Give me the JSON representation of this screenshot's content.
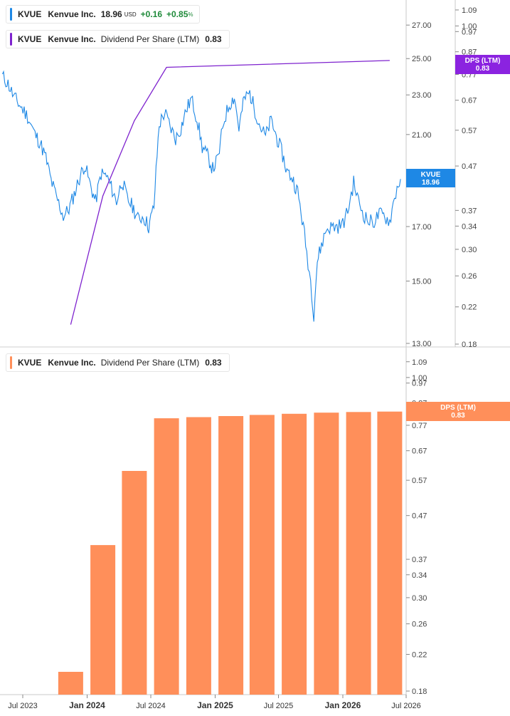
{
  "colors": {
    "price": "#1e88e5",
    "dps_line": "#7e22ce",
    "dps_bar": "#ff8f5a",
    "axis": "#888888"
  },
  "legend_price": {
    "symbol": "KVUE",
    "name": "Kenvue Inc.",
    "price": "18.96",
    "currency": "USD",
    "change": "+0.16",
    "change_pct_value": "+0.85",
    "change_pct_unit": "%"
  },
  "legend_dps_top": {
    "symbol": "KVUE",
    "name": "Kenvue Inc.",
    "metric": "Dividend Per Share (LTM)",
    "value": "0.83"
  },
  "legend_dps_bottom": {
    "symbol": "KVUE",
    "name": "Kenvue Inc.",
    "metric": "Dividend Per Share (LTM)",
    "value": "0.83"
  },
  "badges": {
    "price": {
      "label": "KVUE",
      "value": "18.96"
    },
    "dps_top": {
      "label": "DPS (LTM)",
      "value": "0.83"
    },
    "dps_bottom": {
      "label": "DPS (LTM)",
      "value": "0.83"
    }
  },
  "chart_data": [
    {
      "type": "line",
      "name": "KVUE Kenvue Inc.",
      "x_range": [
        "2023-05",
        "2026-07"
      ],
      "ylim": [
        13.0,
        28.6
      ],
      "y_scale": "log",
      "y_ticks": [
        "27.00",
        "25.00",
        "23.00",
        "21.00",
        "17.00",
        "15.00",
        "13.00"
      ],
      "x": [
        "2023-05-04",
        "2023-05-20",
        "2023-06-05",
        "2023-06-25",
        "2023-07-15",
        "2023-08-05",
        "2023-08-20",
        "2023-09-05",
        "2023-09-20",
        "2023-10-05",
        "2023-10-25",
        "2023-11-10",
        "2023-11-25",
        "2023-12-10",
        "2023-12-25",
        "2024-01-10",
        "2024-01-25",
        "2024-02-10",
        "2024-02-25",
        "2024-03-10",
        "2024-03-25",
        "2024-04-10",
        "2024-04-25",
        "2024-05-10",
        "2024-05-25",
        "2024-06-10",
        "2024-06-25",
        "2024-07-10",
        "2024-07-25",
        "2024-08-10",
        "2024-08-25",
        "2024-09-10",
        "2024-09-25",
        "2024-10-10",
        "2024-10-25",
        "2024-11-10",
        "2024-11-25",
        "2024-12-10",
        "2024-12-25",
        "2025-01-10",
        "2025-01-25",
        "2025-02-10",
        "2025-02-25",
        "2025-03-10",
        "2025-03-25",
        "2025-04-10",
        "2025-04-25",
        "2025-05-10",
        "2025-05-25",
        "2025-06-10",
        "2025-06-25",
        "2025-07-10",
        "2025-07-25",
        "2025-08-10",
        "2025-08-25",
        "2025-09-10",
        "2025-09-20",
        "2025-10-01",
        "2025-10-10",
        "2025-10-20",
        "2025-11-01",
        "2025-11-15",
        "2025-12-01",
        "2025-12-15",
        "2026-01-01",
        "2026-01-15",
        "2026-02-01",
        "2026-02-15",
        "2026-03-01",
        "2026-03-15",
        "2026-04-01",
        "2026-04-15",
        "2026-05-01",
        "2026-05-15",
        "2026-05-25",
        "2026-06-05",
        "2026-06-15"
      ],
      "y": [
        24.0,
        23.6,
        22.9,
        22.4,
        21.9,
        21.0,
        20.6,
        19.9,
        18.9,
        18.2,
        17.4,
        17.7,
        18.3,
        19.0,
        19.6,
        18.7,
        18.0,
        19.2,
        19.1,
        18.6,
        18.0,
        18.9,
        18.1,
        17.8,
        17.3,
        17.4,
        17.0,
        17.8,
        21.5,
        22.1,
        21.4,
        20.8,
        21.3,
        22.2,
        22.8,
        21.8,
        20.4,
        20.0,
        19.4,
        19.9,
        21.6,
        22.5,
        22.9,
        21.3,
        22.8,
        23.1,
        22.2,
        21.4,
        20.9,
        21.7,
        20.9,
        20.2,
        19.3,
        19.0,
        18.4,
        17.0,
        16.0,
        15.0,
        13.9,
        15.7,
        16.3,
        16.9,
        17.0,
        17.0,
        17.1,
        17.6,
        18.8,
        18.0,
        17.5,
        17.2,
        17.2,
        17.5,
        17.4,
        17.2,
        17.9,
        18.6,
        18.96
      ]
    },
    {
      "type": "line",
      "name": "KVUE Kenvue Inc. Dividend Per Share (LTM)",
      "ylim": [
        0.18,
        1.15
      ],
      "y_scale": "log",
      "y_ticks": [
        "1.09",
        "1.00",
        "0.97",
        "0.87",
        "0.77",
        "0.67",
        "0.57",
        "0.47",
        "0.37",
        "0.34",
        "0.30",
        "0.26",
        "0.22",
        "0.18"
      ],
      "x": [
        "2023-11-15",
        "2024-02-15",
        "2024-05-15",
        "2024-08-15",
        "2026-05-15"
      ],
      "y": [
        0.2,
        0.4,
        0.6,
        0.8,
        0.83
      ]
    },
    {
      "type": "bar",
      "name": "KVUE Kenvue Inc. Dividend Per Share (LTM)",
      "ylim": [
        0.18,
        1.15
      ],
      "y_scale": "log",
      "y_ticks": [
        "1.09",
        "1.00",
        "0.97",
        "0.87",
        "0.77",
        "0.67",
        "0.57",
        "0.47",
        "0.37",
        "0.34",
        "0.30",
        "0.26",
        "0.22",
        "0.18"
      ],
      "x_ticks": [
        "Jul 2023",
        "Jan 2024",
        "Jul 2024",
        "Jan 2025",
        "Jul 2025",
        "Jan 2026",
        "Jul 2026"
      ],
      "x": [
        "2023-11-15",
        "2024-02-15",
        "2024-05-15",
        "2024-08-15",
        "2024-11-15",
        "2025-02-15",
        "2025-05-15",
        "2025-08-15",
        "2025-11-15",
        "2026-02-15",
        "2026-05-15"
      ],
      "values": [
        0.2,
        0.4,
        0.6,
        0.8,
        0.805,
        0.81,
        0.815,
        0.82,
        0.825,
        0.828,
        0.83
      ]
    }
  ]
}
